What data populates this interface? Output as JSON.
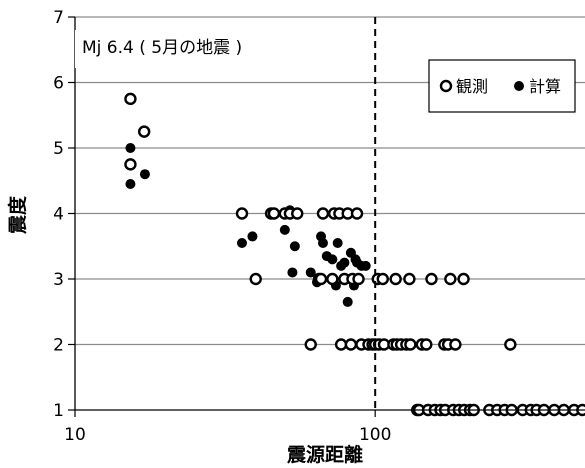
{
  "chart_data": {
    "type": "scatter",
    "title": "",
    "annotation": "Mj 6.4 ( 5月の地震 )",
    "xlabel": "震源距離",
    "ylabel": "震度",
    "xscale": "log",
    "xlim": [
      10,
      500
    ],
    "ylim": [
      1,
      7
    ],
    "x_ticks": [
      10,
      100
    ],
    "y_ticks": [
      1,
      2,
      3,
      4,
      5,
      6,
      7
    ],
    "grid": "horizontal",
    "legend_position": "top-right",
    "reference_line": {
      "x": 100,
      "style": "dashed"
    },
    "series": [
      {
        "name": "観測",
        "marker": "open-circle",
        "points": [
          [
            15.3,
            5.75
          ],
          [
            15.3,
            4.75
          ],
          [
            17.0,
            5.25
          ],
          [
            36,
            4.0
          ],
          [
            40,
            3.0
          ],
          [
            45,
            4.0
          ],
          [
            46,
            4.0
          ],
          [
            50,
            4.0
          ],
          [
            52,
            4.0
          ],
          [
            55,
            4.0
          ],
          [
            61,
            2.0
          ],
          [
            65,
            3.0
          ],
          [
            66,
            3.0
          ],
          [
            67,
            4.0
          ],
          [
            72,
            3.0
          ],
          [
            73,
            4.0
          ],
          [
            76,
            4.0
          ],
          [
            77,
            2.0
          ],
          [
            79,
            3.0
          ],
          [
            81,
            4.0
          ],
          [
            83,
            2.0
          ],
          [
            84,
            3.0
          ],
          [
            87,
            4.0
          ],
          [
            88,
            3.0
          ],
          [
            90,
            2.0
          ],
          [
            95,
            2.0
          ],
          [
            98,
            2.0
          ],
          [
            100,
            2.0
          ],
          [
            102,
            3.0
          ],
          [
            103,
            2.0
          ],
          [
            106,
            3.0
          ],
          [
            107,
            2.0
          ],
          [
            115,
            2.0
          ],
          [
            117,
            3.0
          ],
          [
            118,
            2.0
          ],
          [
            122,
            2.0
          ],
          [
            127,
            2.0
          ],
          [
            130,
            3.0
          ],
          [
            131,
            2.0
          ],
          [
            138,
            1.0
          ],
          [
            140,
            1.0
          ],
          [
            143,
            2.0
          ],
          [
            148,
            2.0
          ],
          [
            150,
            1.0
          ],
          [
            154,
            3.0
          ],
          [
            158,
            1.0
          ],
          [
            165,
            1.0
          ],
          [
            170,
            2.0
          ],
          [
            171,
            1.0
          ],
          [
            175,
            2.0
          ],
          [
            178,
            3.0
          ],
          [
            182,
            1.0
          ],
          [
            185,
            2.0
          ],
          [
            190,
            1.0
          ],
          [
            197,
            3.0
          ],
          [
            198,
            1.0
          ],
          [
            207,
            1.0
          ],
          [
            213,
            1.0
          ],
          [
            240,
            1.0
          ],
          [
            255,
            1.0
          ],
          [
            270,
            1.0
          ],
          [
            282,
            2.0
          ],
          [
            285,
            1.0
          ],
          [
            310,
            1.0
          ],
          [
            330,
            1.0
          ],
          [
            345,
            1.0
          ],
          [
            365,
            1.0
          ],
          [
            395,
            1.0
          ],
          [
            425,
            1.0
          ],
          [
            460,
            1.0
          ],
          [
            490,
            1.0
          ]
        ]
      },
      {
        "name": "計算",
        "marker": "filled-circle",
        "points": [
          [
            15.3,
            5.0
          ],
          [
            15.3,
            4.45
          ],
          [
            17.1,
            4.6
          ],
          [
            36,
            3.55
          ],
          [
            39,
            3.65
          ],
          [
            45,
            4.0
          ],
          [
            50,
            3.75
          ],
          [
            52,
            4.05
          ],
          [
            53,
            3.1
          ],
          [
            54,
            3.5
          ],
          [
            61,
            3.1
          ],
          [
            64,
            2.95
          ],
          [
            66,
            3.65
          ],
          [
            67,
            3.55
          ],
          [
            69,
            3.35
          ],
          [
            72,
            3.3
          ],
          [
            74,
            2.9
          ],
          [
            75,
            3.55
          ],
          [
            77,
            3.2
          ],
          [
            79,
            3.25
          ],
          [
            81,
            2.65
          ],
          [
            83,
            3.4
          ],
          [
            85,
            2.9
          ],
          [
            86,
            3.3
          ],
          [
            87,
            3.25
          ],
          [
            90,
            3.2
          ],
          [
            93,
            3.2
          ]
        ]
      }
    ]
  }
}
